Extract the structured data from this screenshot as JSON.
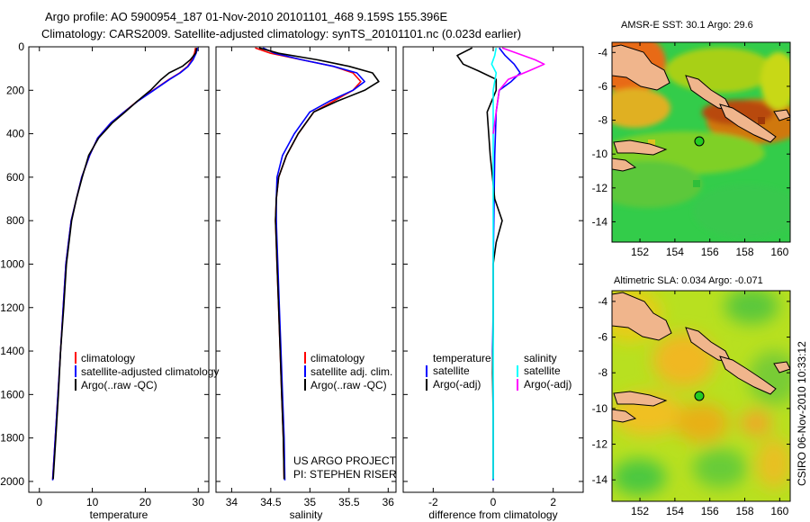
{
  "header": {
    "line1": "Argo profile: AO 5900954_187 01-Nov-2010 20101101_468 9.159S 155.396E",
    "line2": "Climatology: CARS2009. Satellite-adjusted climatology: synTS_20101101.nc (0.023d earlier)"
  },
  "side_label": "CSIRO 06-Nov-2010 10:33:12",
  "project_note": {
    "line1": "US ARGO PROJECT",
    "line2": "PI: STEPHEN RISER"
  },
  "colors": {
    "climatology": "#ff0000",
    "satellite": "#0000ff",
    "argo": "#000000",
    "sal_satellite": "#00ffff",
    "sal_argo": "#ff00ff",
    "marker": "#22cc22",
    "land": "#f0b58c"
  },
  "chart_data": [
    {
      "type": "line",
      "id": "temperature",
      "xlabel": "temperature",
      "ylabel": "",
      "xlim": [
        -2,
        32
      ],
      "ylim": [
        2050,
        0
      ],
      "xticks": [
        0,
        10,
        20,
        30
      ],
      "yticks": [
        0,
        200,
        400,
        600,
        800,
        1000,
        1200,
        1400,
        1600,
        1800,
        2000
      ],
      "legend": {
        "placement": "lower-right",
        "entries": [
          "climatology",
          "satellite-adjusted climatology",
          "Argo(..raw -QC)"
        ]
      },
      "series": [
        {
          "name": "climatology",
          "color": "#ff0000",
          "points": [
            [
              29.5,
              5
            ],
            [
              29.3,
              30
            ],
            [
              28.8,
              60
            ],
            [
              28.0,
              90
            ],
            [
              26.5,
              120
            ],
            [
              24.5,
              150
            ],
            [
              21.5,
              200
            ],
            [
              18.5,
              250
            ],
            [
              16.0,
              300
            ],
            [
              13.5,
              350
            ],
            [
              11.0,
              420
            ],
            [
              9.5,
              500
            ],
            [
              8.0,
              600
            ],
            [
              7.0,
              700
            ],
            [
              6.0,
              800
            ],
            [
              5.5,
              900
            ],
            [
              5.0,
              1000
            ],
            [
              4.5,
              1200
            ],
            [
              4.0,
              1400
            ],
            [
              3.5,
              1600
            ],
            [
              3.0,
              1800
            ],
            [
              2.5,
              1990
            ]
          ]
        },
        {
          "name": "satellite-adjusted climatology",
          "color": "#0000ff",
          "points": [
            [
              29.9,
              5
            ],
            [
              29.6,
              30
            ],
            [
              29.0,
              60
            ],
            [
              28.1,
              90
            ],
            [
              26.6,
              120
            ],
            [
              24.6,
              150
            ],
            [
              21.6,
              200
            ],
            [
              18.6,
              250
            ],
            [
              16.0,
              300
            ],
            [
              13.5,
              350
            ],
            [
              11.0,
              420
            ],
            [
              9.5,
              500
            ],
            [
              8.0,
              600
            ],
            [
              7.0,
              700
            ],
            [
              6.0,
              800
            ],
            [
              5.5,
              900
            ],
            [
              5.0,
              1000
            ],
            [
              4.5,
              1200
            ],
            [
              4.0,
              1400
            ],
            [
              3.5,
              1600
            ],
            [
              3.0,
              1800
            ],
            [
              2.5,
              1995
            ]
          ]
        },
        {
          "name": "Argo(..raw -QC)",
          "color": "#000000",
          "points": [
            [
              29.7,
              5
            ],
            [
              29.5,
              30
            ],
            [
              28.5,
              60
            ],
            [
              27.0,
              90
            ],
            [
              24.5,
              120
            ],
            [
              23.0,
              150
            ],
            [
              21.0,
              200
            ],
            [
              18.5,
              250
            ],
            [
              16.2,
              300
            ],
            [
              13.8,
              350
            ],
            [
              11.2,
              420
            ],
            [
              9.3,
              500
            ],
            [
              8.1,
              600
            ],
            [
              7.0,
              700
            ],
            [
              6.1,
              800
            ],
            [
              5.6,
              900
            ],
            [
              5.1,
              1000
            ],
            [
              4.6,
              1200
            ],
            [
              4.0,
              1400
            ],
            [
              3.6,
              1600
            ],
            [
              3.1,
              1800
            ],
            [
              2.6,
              1990
            ]
          ]
        }
      ]
    },
    {
      "type": "line",
      "id": "salinity",
      "xlabel": "salinity",
      "ylabel": "",
      "xlim": [
        33.8,
        36.1
      ],
      "ylim": [
        2050,
        0
      ],
      "xticks": [
        34,
        34.5,
        35,
        35.5,
        36
      ],
      "yticks": [
        0,
        200,
        400,
        600,
        800,
        1000,
        1200,
        1400,
        1600,
        1800,
        2000
      ],
      "legend": {
        "placement": "lower-right",
        "entries": [
          "climatology",
          "satellite adj. clim.",
          "Argo(..raw -QC)"
        ]
      },
      "series": [
        {
          "name": "climatology",
          "color": "#ff0000",
          "points": [
            [
              34.3,
              5
            ],
            [
              34.5,
              30
            ],
            [
              34.9,
              60
            ],
            [
              35.3,
              90
            ],
            [
              35.55,
              120
            ],
            [
              35.65,
              160
            ],
            [
              35.55,
              200
            ],
            [
              35.3,
              250
            ],
            [
              35.05,
              300
            ],
            [
              34.85,
              400
            ],
            [
              34.7,
              500
            ],
            [
              34.6,
              600
            ],
            [
              34.57,
              700
            ],
            [
              34.56,
              800
            ],
            [
              34.57,
              900
            ],
            [
              34.58,
              1000
            ],
            [
              34.6,
              1200
            ],
            [
              34.62,
              1400
            ],
            [
              34.64,
              1600
            ],
            [
              34.66,
              1800
            ],
            [
              34.67,
              1990
            ]
          ]
        },
        {
          "name": "satellite adj. clim.",
          "color": "#0000ff",
          "points": [
            [
              34.4,
              5
            ],
            [
              34.55,
              30
            ],
            [
              34.9,
              60
            ],
            [
              35.3,
              90
            ],
            [
              35.6,
              120
            ],
            [
              35.7,
              160
            ],
            [
              35.55,
              200
            ],
            [
              35.25,
              250
            ],
            [
              35.0,
              300
            ],
            [
              34.8,
              400
            ],
            [
              34.65,
              500
            ],
            [
              34.58,
              600
            ],
            [
              34.57,
              700
            ],
            [
              34.57,
              800
            ],
            [
              34.58,
              900
            ],
            [
              34.59,
              1000
            ],
            [
              34.61,
              1200
            ],
            [
              34.63,
              1400
            ],
            [
              34.65,
              1600
            ],
            [
              34.67,
              1800
            ],
            [
              34.68,
              1995
            ]
          ]
        },
        {
          "name": "Argo(..raw -QC)",
          "color": "#000000",
          "points": [
            [
              34.35,
              5
            ],
            [
              34.6,
              30
            ],
            [
              35.1,
              60
            ],
            [
              35.5,
              90
            ],
            [
              35.8,
              120
            ],
            [
              35.88,
              160
            ],
            [
              35.7,
              200
            ],
            [
              35.35,
              250
            ],
            [
              35.05,
              300
            ],
            [
              34.85,
              400
            ],
            [
              34.7,
              500
            ],
            [
              34.6,
              600
            ],
            [
              34.57,
              700
            ],
            [
              34.56,
              800
            ],
            [
              34.57,
              900
            ],
            [
              34.58,
              1000
            ],
            [
              34.6,
              1200
            ],
            [
              34.62,
              1400
            ],
            [
              34.64,
              1600
            ],
            [
              34.66,
              1800
            ],
            [
              34.67,
              1990
            ]
          ]
        }
      ]
    },
    {
      "type": "line",
      "id": "difference",
      "xlabel": "difference from climatology",
      "ylabel": "",
      "xlim": [
        -3.0,
        3.0
      ],
      "ylim": [
        2050,
        0
      ],
      "xticks": [
        -2,
        0,
        2
      ],
      "yticks": [
        0,
        200,
        400,
        600,
        800,
        1000,
        1200,
        1400,
        1600,
        1800,
        2000
      ],
      "legend": {
        "placement": "lower-center",
        "headers": [
          "temperature",
          "salinity"
        ],
        "entries": [
          "satellite",
          "Argo(-adj)",
          "satellite",
          "Argo(-adj)"
        ]
      },
      "series": [
        {
          "name": "temperature satellite",
          "color": "#0000ff",
          "points": [
            [
              0.2,
              5
            ],
            [
              0.4,
              40
            ],
            [
              0.7,
              80
            ],
            [
              0.9,
              120
            ],
            [
              0.6,
              160
            ],
            [
              0.2,
              200
            ],
            [
              0.1,
              300
            ],
            [
              0.05,
              500
            ],
            [
              0.02,
              800
            ],
            [
              0.0,
              1000
            ],
            [
              0.0,
              1200
            ],
            [
              -0.02,
              1400
            ],
            [
              0.0,
              1600
            ],
            [
              0.0,
              1800
            ],
            [
              0.0,
              1995
            ]
          ]
        },
        {
          "name": "temperature Argo(-adj)",
          "color": "#000000",
          "points": [
            [
              -0.7,
              5
            ],
            [
              -1.2,
              40
            ],
            [
              -1.0,
              80
            ],
            [
              -0.5,
              110
            ],
            [
              0.1,
              150
            ],
            [
              0.1,
              200
            ],
            [
              -0.2,
              300
            ],
            [
              -0.1,
              500
            ],
            [
              0.05,
              700
            ],
            [
              0.3,
              800
            ],
            [
              0.1,
              900
            ],
            [
              0.0,
              1000
            ],
            [
              0.0,
              1300
            ],
            [
              -0.02,
              1500
            ],
            [
              0.0,
              1700
            ],
            [
              0.0,
              1990
            ]
          ]
        },
        {
          "name": "salinity satellite",
          "color": "#00ffff",
          "points": [
            [
              0.1,
              5
            ],
            [
              0.05,
              40
            ],
            [
              -0.05,
              80
            ],
            [
              0.1,
              120
            ],
            [
              0.05,
              160
            ],
            [
              0.0,
              200
            ],
            [
              0.0,
              400
            ],
            [
              0.0,
              700
            ],
            [
              0.0,
              1000
            ],
            [
              0.0,
              1300
            ],
            [
              0.0,
              1600
            ],
            [
              0.0,
              1990
            ]
          ]
        },
        {
          "name": "salinity Argo(-adj)",
          "color": "#ff00ff",
          "points": [
            [
              0.3,
              5
            ],
            [
              0.8,
              30
            ],
            [
              1.4,
              60
            ],
            [
              1.7,
              80
            ],
            [
              1.2,
              110
            ],
            [
              0.5,
              150
            ],
            [
              0.2,
              200
            ],
            [
              0.1,
              300
            ],
            [
              0.0,
              400
            ]
          ]
        }
      ]
    },
    {
      "type": "heatmap",
      "id": "sst-map",
      "title": "AMSR-E SST: 30.1  Argo: 29.6",
      "xlim": [
        150.4,
        160.6
      ],
      "ylim": [
        -15.2,
        -3.4
      ],
      "xticks": [
        152,
        154,
        156,
        158,
        160
      ],
      "yticks": [
        -4,
        -6,
        -8,
        -10,
        -12,
        -14
      ],
      "marker": {
        "lon": 155.396,
        "lat": -9.159
      }
    },
    {
      "type": "heatmap",
      "id": "sla-map",
      "title": "Altimetric SLA: 0.034  Argo: -0.071",
      "xlim": [
        150.4,
        160.6
      ],
      "ylim": [
        -15.2,
        -3.4
      ],
      "xticks": [
        152,
        154,
        156,
        158,
        160
      ],
      "yticks": [
        -4,
        -6,
        -8,
        -10,
        -12,
        -14
      ],
      "marker": {
        "lon": 155.396,
        "lat": -9.159
      }
    }
  ]
}
